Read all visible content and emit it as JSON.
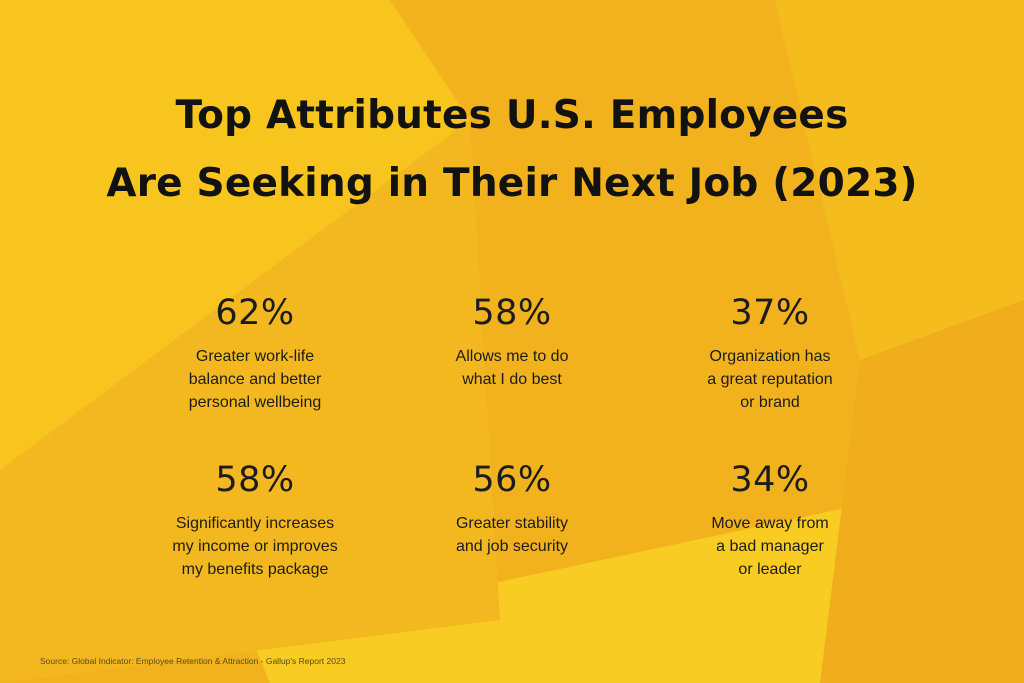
{
  "title": {
    "line1": "Top Attributes U.S. Employees",
    "line2": "Are Seeking in Their Next Job (2023)"
  },
  "stats": [
    {
      "value": "62%",
      "lines": [
        "Greater work-life",
        "balance and better",
        "personal wellbeing"
      ]
    },
    {
      "value": "58%",
      "lines": [
        "Allows me to do",
        "what I do best"
      ]
    },
    {
      "value": "37%",
      "lines": [
        "Organization has",
        "a great reputation",
        "or brand"
      ]
    },
    {
      "value": "58%",
      "lines": [
        "Significantly increases",
        "my income or improves",
        "my benefits package"
      ]
    },
    {
      "value": "56%",
      "lines": [
        "Greater stability",
        "and job security"
      ]
    },
    {
      "value": "34%",
      "lines": [
        "Move away from",
        "a bad manager",
        "or leader"
      ]
    }
  ],
  "source": "Source: Global Indicator: Employee Retention & Attraction - Gallup's Report 2023",
  "colors": {
    "background": "#F2B21E",
    "highlight": "#FBD321",
    "text": "#121212"
  }
}
